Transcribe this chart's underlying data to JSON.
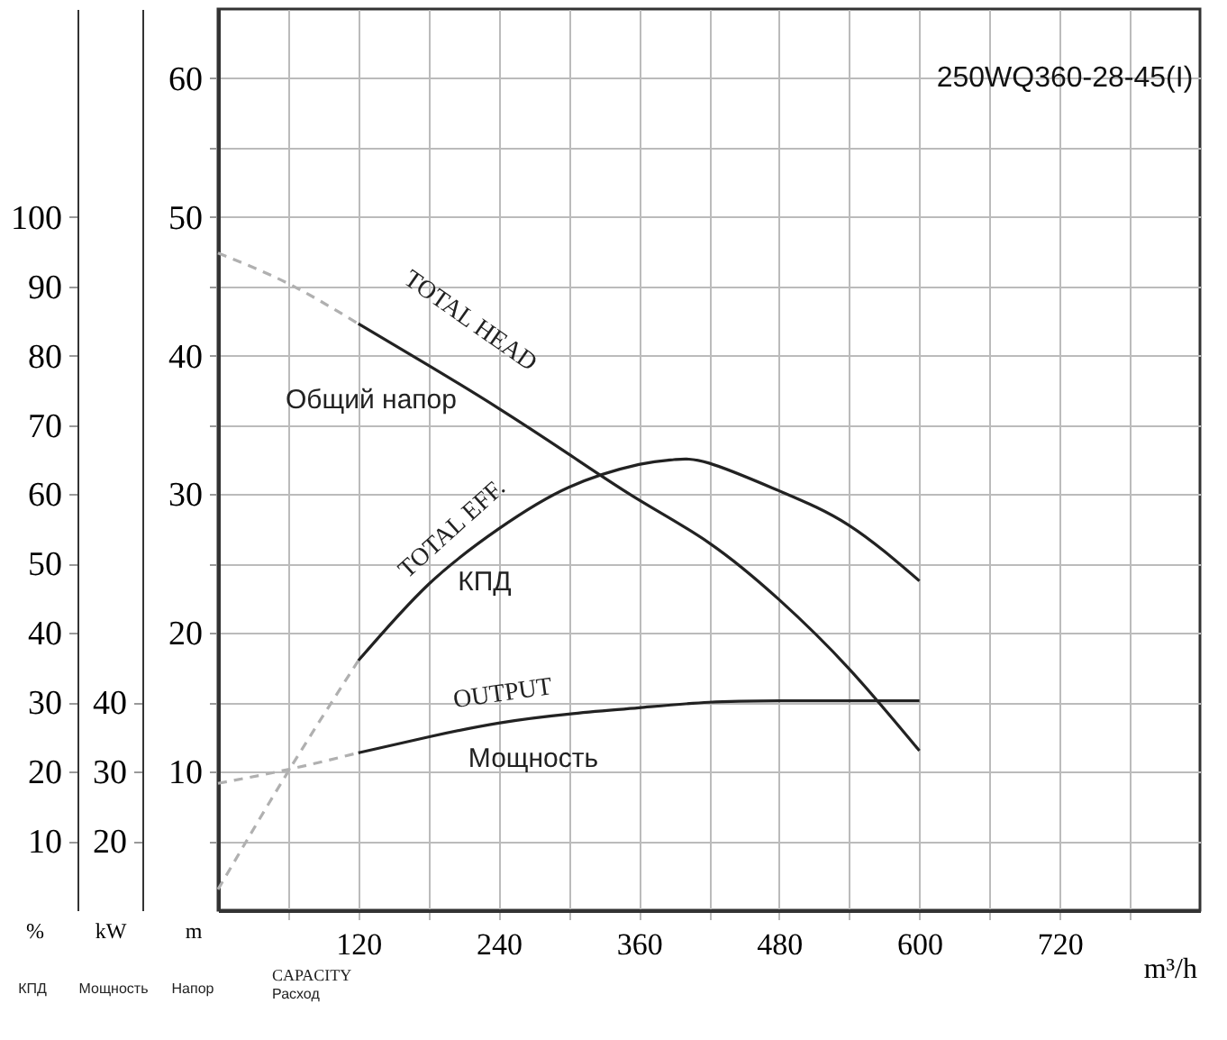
{
  "chart_data": {
    "type": "line",
    "title": "250WQ360-28-45(I)",
    "xlabel": "m³/h",
    "ylabel": "m",
    "y2label": "%",
    "y3label": "kW",
    "xlim": [
      0,
      840
    ],
    "xticks": [
      {
        "value": 60,
        "label": null
      },
      120,
      {
        "value": 180,
        "label": null
      },
      240,
      {
        "value": 300,
        "label": null
      },
      360,
      {
        "value": 420,
        "label": null
      },
      480,
      {
        "value": 540,
        "label": null
      },
      600,
      {
        "value": 660,
        "label": null
      },
      720,
      {
        "value": 780,
        "label": null
      }
    ],
    "ylim": [
      0,
      65
    ],
    "yticks": [
      {
        "value": 5,
        "label": null
      },
      10,
      {
        "value": 15,
        "label": null
      },
      20,
      {
        "value": 25,
        "label": null
      },
      30,
      {
        "value": 35,
        "label": null
      },
      40,
      {
        "value": 45,
        "label": null
      },
      50,
      {
        "value": 55,
        "label": null
      },
      60
    ],
    "y2lim": [
      0,
      130
    ],
    "y2ticks": [
      10,
      20,
      30,
      40,
      50,
      60,
      70,
      80,
      90,
      100
    ],
    "y3lim": [
      10,
      140
    ],
    "y3ticks": [
      20,
      30,
      40
    ],
    "grid": true,
    "legend": false,
    "marker": "none",
    "series": [
      {
        "color": "#222222",
        "line_style": "solid",
        "axis": "y",
        "x": [
          120,
          180,
          240,
          300,
          360,
          420,
          480,
          540,
          600
        ],
        "values": [
          42.3,
          39.3,
          36.2,
          32.9,
          29.6,
          26.5,
          22.4,
          17.4,
          11.5
        ]
      },
      {
        "color": "#b0b0b0",
        "line_style": "dashed",
        "axis": "y",
        "x": [
          0,
          60,
          120
        ],
        "values": [
          47.4,
          45.2,
          42.3
        ]
      },
      {
        "color": "#222222",
        "line_style": "solid",
        "axis": "y2",
        "x": [
          120,
          180,
          240,
          300,
          360,
          390,
          420,
          480,
          540,
          600
        ],
        "values": [
          36,
          47,
          55,
          61,
          64.3,
          65,
          64.5,
          60.5,
          55.5,
          47.5
        ]
      },
      {
        "color": "#b0b0b0",
        "line_style": "dashed",
        "axis": "y2",
        "x": [
          0,
          60,
          120
        ],
        "values": [
          3,
          20,
          36
        ]
      },
      {
        "color": "#222222",
        "line_style": "solid",
        "axis": "y3",
        "x": [
          120,
          180,
          240,
          300,
          360,
          420,
          480,
          540,
          600
        ],
        "values": [
          32.7,
          35,
          37,
          38.3,
          39.2,
          40,
          40.2,
          40.2,
          40.2
        ]
      },
      {
        "color": "#b0b0b0",
        "line_style": "dashed",
        "axis": "y3",
        "x": [
          0,
          60,
          120
        ],
        "values": [
          28.3,
          30.3,
          32.7
        ]
      }
    ],
    "annotations": [
      "TOTAL HEAD",
      "Общий напор",
      "TOTAL EFF.",
      "КПД",
      "OUTPUT",
      "Мощность",
      "CAPACITY",
      "Расход",
      "КПД",
      "Мощность",
      "Напор"
    ]
  }
}
